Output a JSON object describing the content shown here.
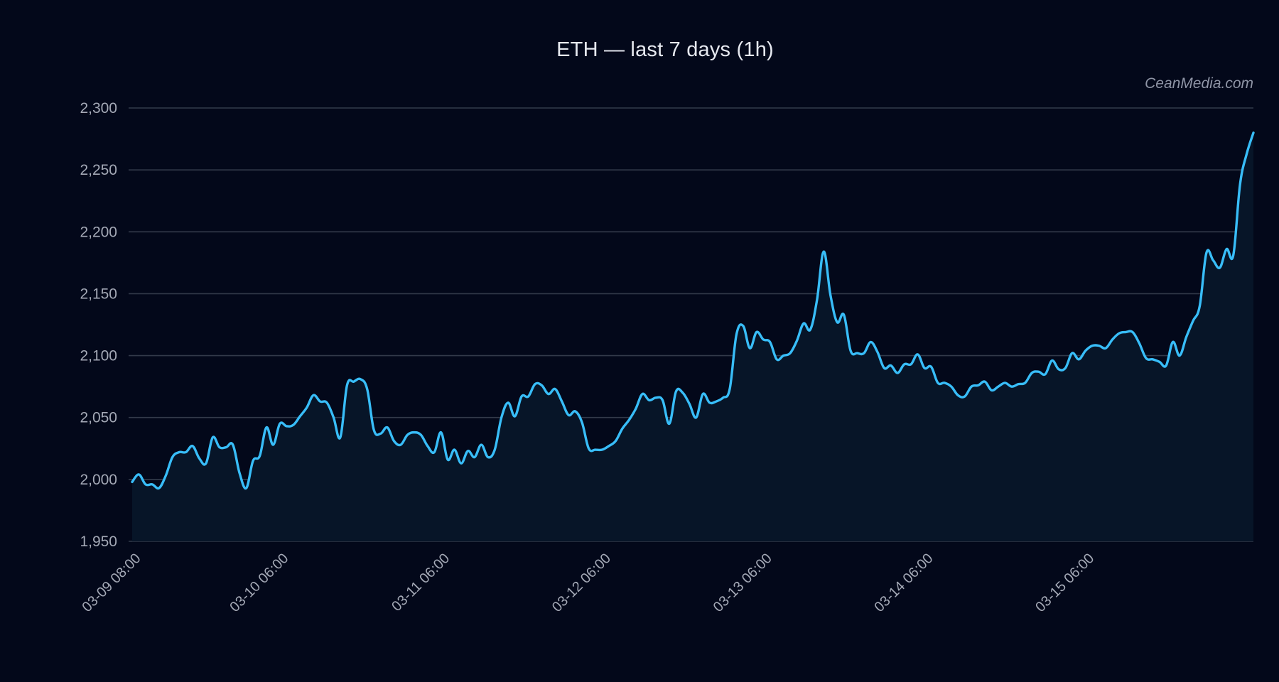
{
  "header": {
    "title": "ETH — last 7 days (1h)",
    "watermark": "CeanMedia.com"
  },
  "colors": {
    "background": "#03081a",
    "line": "#38bdf8",
    "fill": "#071528",
    "grid": "#333a4a",
    "tick_text": "#a4a9b6",
    "title_text": "#e6e9f0",
    "watermark_text": "#8f95a6"
  },
  "chart_data": {
    "type": "area",
    "title": "ETH — last 7 days (1h)",
    "xlabel": "",
    "ylabel": "",
    "ylim": [
      1950,
      2300
    ],
    "yticks": [
      1950,
      2000,
      2050,
      2100,
      2150,
      2200,
      2250,
      2300
    ],
    "ytick_labels": [
      "1,950",
      "2,000",
      "2,050",
      "2,100",
      "2,150",
      "2,200",
      "2,250",
      "2,300"
    ],
    "xtick_labels": [
      "03-09 08:00",
      "03-10 06:00",
      "03-11 06:00",
      "03-12 06:00",
      "03-13 06:00",
      "03-14 06:00",
      "03-15 06:00"
    ],
    "xtick_hours": [
      0,
      22,
      46,
      70,
      94,
      118,
      142
    ],
    "x_range_hours": [
      0,
      167
    ],
    "grid": true,
    "legend": null,
    "series": [
      {
        "name": "ETH",
        "points": [
          [
            0,
            1998
          ],
          [
            1,
            2004
          ],
          [
            2,
            1996
          ],
          [
            3,
            1996
          ],
          [
            4,
            1993
          ],
          [
            5,
            2003
          ],
          [
            6,
            2018
          ],
          [
            7,
            2022
          ],
          [
            8,
            2022
          ],
          [
            9,
            2027
          ],
          [
            10,
            2017
          ],
          [
            11,
            2013
          ],
          [
            12,
            2034
          ],
          [
            13,
            2026
          ],
          [
            14,
            2026
          ],
          [
            15,
            2028
          ],
          [
            16,
            2005
          ],
          [
            17,
            1993
          ],
          [
            18,
            2015
          ],
          [
            19,
            2019
          ],
          [
            20,
            2042
          ],
          [
            21,
            2028
          ],
          [
            22,
            2045
          ],
          [
            23,
            2043
          ],
          [
            24,
            2044
          ],
          [
            25,
            2051
          ],
          [
            26,
            2058
          ],
          [
            27,
            2068
          ],
          [
            28,
            2063
          ],
          [
            29,
            2062
          ],
          [
            30,
            2050
          ],
          [
            31,
            2034
          ],
          [
            32,
            2076
          ],
          [
            33,
            2079
          ],
          [
            34,
            2081
          ],
          [
            35,
            2073
          ],
          [
            36,
            2040
          ],
          [
            37,
            2037
          ],
          [
            38,
            2042
          ],
          [
            39,
            2031
          ],
          [
            40,
            2028
          ],
          [
            41,
            2036
          ],
          [
            42,
            2038
          ],
          [
            43,
            2036
          ],
          [
            44,
            2027
          ],
          [
            45,
            2022
          ],
          [
            46,
            2038
          ],
          [
            47,
            2016
          ],
          [
            48,
            2024
          ],
          [
            49,
            2013
          ],
          [
            50,
            2023
          ],
          [
            51,
            2018
          ],
          [
            52,
            2028
          ],
          [
            53,
            2018
          ],
          [
            54,
            2024
          ],
          [
            55,
            2050
          ],
          [
            56,
            2062
          ],
          [
            57,
            2051
          ],
          [
            58,
            2067
          ],
          [
            59,
            2067
          ],
          [
            60,
            2077
          ],
          [
            61,
            2076
          ],
          [
            62,
            2069
          ],
          [
            63,
            2073
          ],
          [
            64,
            2063
          ],
          [
            65,
            2052
          ],
          [
            66,
            2055
          ],
          [
            67,
            2046
          ],
          [
            68,
            2025
          ],
          [
            69,
            2024
          ],
          [
            70,
            2024
          ],
          [
            71,
            2027
          ],
          [
            72,
            2031
          ],
          [
            73,
            2041
          ],
          [
            74,
            2048
          ],
          [
            75,
            2057
          ],
          [
            76,
            2069
          ],
          [
            77,
            2064
          ],
          [
            78,
            2066
          ],
          [
            79,
            2064
          ],
          [
            80,
            2045
          ],
          [
            81,
            2071
          ],
          [
            82,
            2070
          ],
          [
            83,
            2061
          ],
          [
            84,
            2050
          ],
          [
            85,
            2069
          ],
          [
            86,
            2062
          ],
          [
            87,
            2063
          ],
          [
            88,
            2066
          ],
          [
            89,
            2073
          ],
          [
            90,
            2117
          ],
          [
            91,
            2124
          ],
          [
            92,
            2106
          ],
          [
            93,
            2119
          ],
          [
            94,
            2113
          ],
          [
            95,
            2111
          ],
          [
            96,
            2097
          ],
          [
            97,
            2100
          ],
          [
            98,
            2102
          ],
          [
            99,
            2112
          ],
          [
            100,
            2126
          ],
          [
            101,
            2121
          ],
          [
            102,
            2145
          ],
          [
            103,
            2184
          ],
          [
            104,
            2149
          ],
          [
            105,
            2127
          ],
          [
            106,
            2133
          ],
          [
            107,
            2104
          ],
          [
            108,
            2102
          ],
          [
            109,
            2102
          ],
          [
            110,
            2111
          ],
          [
            111,
            2103
          ],
          [
            112,
            2090
          ],
          [
            113,
            2092
          ],
          [
            114,
            2086
          ],
          [
            115,
            2093
          ],
          [
            116,
            2093
          ],
          [
            117,
            2101
          ],
          [
            118,
            2090
          ],
          [
            119,
            2091
          ],
          [
            120,
            2078
          ],
          [
            121,
            2078
          ],
          [
            122,
            2075
          ],
          [
            123,
            2068
          ],
          [
            124,
            2067
          ],
          [
            125,
            2075
          ],
          [
            126,
            2076
          ],
          [
            127,
            2079
          ],
          [
            128,
            2072
          ],
          [
            129,
            2075
          ],
          [
            130,
            2078
          ],
          [
            131,
            2075
          ],
          [
            132,
            2077
          ],
          [
            133,
            2078
          ],
          [
            134,
            2086
          ],
          [
            135,
            2087
          ],
          [
            136,
            2085
          ],
          [
            137,
            2096
          ],
          [
            138,
            2089
          ],
          [
            139,
            2090
          ],
          [
            140,
            2102
          ],
          [
            141,
            2097
          ],
          [
            142,
            2104
          ],
          [
            143,
            2108
          ],
          [
            144,
            2108
          ],
          [
            145,
            2106
          ],
          [
            146,
            2113
          ],
          [
            147,
            2118
          ],
          [
            148,
            2119
          ],
          [
            149,
            2119
          ],
          [
            150,
            2110
          ],
          [
            151,
            2098
          ],
          [
            152,
            2097
          ],
          [
            153,
            2095
          ],
          [
            154,
            2092
          ],
          [
            155,
            2111
          ],
          [
            156,
            2100
          ],
          [
            157,
            2115
          ],
          [
            158,
            2128
          ],
          [
            159,
            2140
          ],
          [
            160,
            2183
          ],
          [
            161,
            2177
          ],
          [
            162,
            2171
          ],
          [
            163,
            2186
          ],
          [
            164,
            2181
          ],
          [
            165,
            2238
          ],
          [
            166,
            2263
          ],
          [
            167,
            2280
          ]
        ]
      }
    ]
  }
}
